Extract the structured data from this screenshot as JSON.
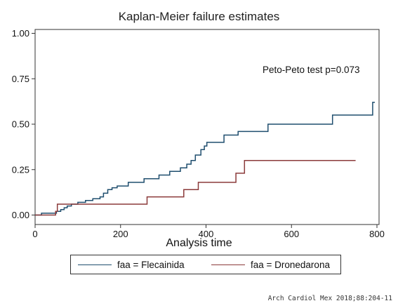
{
  "chart_data": {
    "type": "line",
    "step": true,
    "title": "Kaplan-Meier failure estimates",
    "xlabel": "Analysis time",
    "ylabel": "",
    "xlim": [
      0,
      800
    ],
    "ylim": [
      0,
      1
    ],
    "xticks": [
      "0",
      "200",
      "400",
      "600",
      "800"
    ],
    "yticks": [
      "0.00",
      "0.25",
      "0.50",
      "0.75",
      "1.00"
    ],
    "grid": false,
    "legend_position": "bottom",
    "annotation": "Peto-Peto test p=0.073",
    "series": [
      {
        "name": "faa = Flecainida",
        "color": "#1f4e6e",
        "points": [
          [
            0,
            0.0
          ],
          [
            15,
            0.01
          ],
          [
            50,
            0.02
          ],
          [
            60,
            0.03
          ],
          [
            68,
            0.04
          ],
          [
            75,
            0.05
          ],
          [
            85,
            0.06
          ],
          [
            100,
            0.07
          ],
          [
            118,
            0.08
          ],
          [
            135,
            0.09
          ],
          [
            152,
            0.1
          ],
          [
            160,
            0.12
          ],
          [
            170,
            0.14
          ],
          [
            180,
            0.15
          ],
          [
            192,
            0.16
          ],
          [
            218,
            0.18
          ],
          [
            255,
            0.2
          ],
          [
            290,
            0.22
          ],
          [
            315,
            0.24
          ],
          [
            340,
            0.26
          ],
          [
            355,
            0.28
          ],
          [
            365,
            0.3
          ],
          [
            375,
            0.33
          ],
          [
            388,
            0.36
          ],
          [
            396,
            0.38
          ],
          [
            402,
            0.4
          ],
          [
            442,
            0.44
          ],
          [
            475,
            0.46
          ],
          [
            545,
            0.5
          ],
          [
            696,
            0.55
          ],
          [
            790,
            0.62
          ],
          [
            795,
            0.62
          ]
        ]
      },
      {
        "name": "faa = Dronedarona",
        "color": "#8b3a3a",
        "points": [
          [
            0,
            0.0
          ],
          [
            48,
            0.02
          ],
          [
            52,
            0.06
          ],
          [
            262,
            0.1
          ],
          [
            348,
            0.14
          ],
          [
            382,
            0.18
          ],
          [
            470,
            0.23
          ],
          [
            490,
            0.3
          ],
          [
            750,
            0.3
          ]
        ]
      }
    ],
    "source": "Arch Cardiol Mex 2018;88:204-11"
  }
}
